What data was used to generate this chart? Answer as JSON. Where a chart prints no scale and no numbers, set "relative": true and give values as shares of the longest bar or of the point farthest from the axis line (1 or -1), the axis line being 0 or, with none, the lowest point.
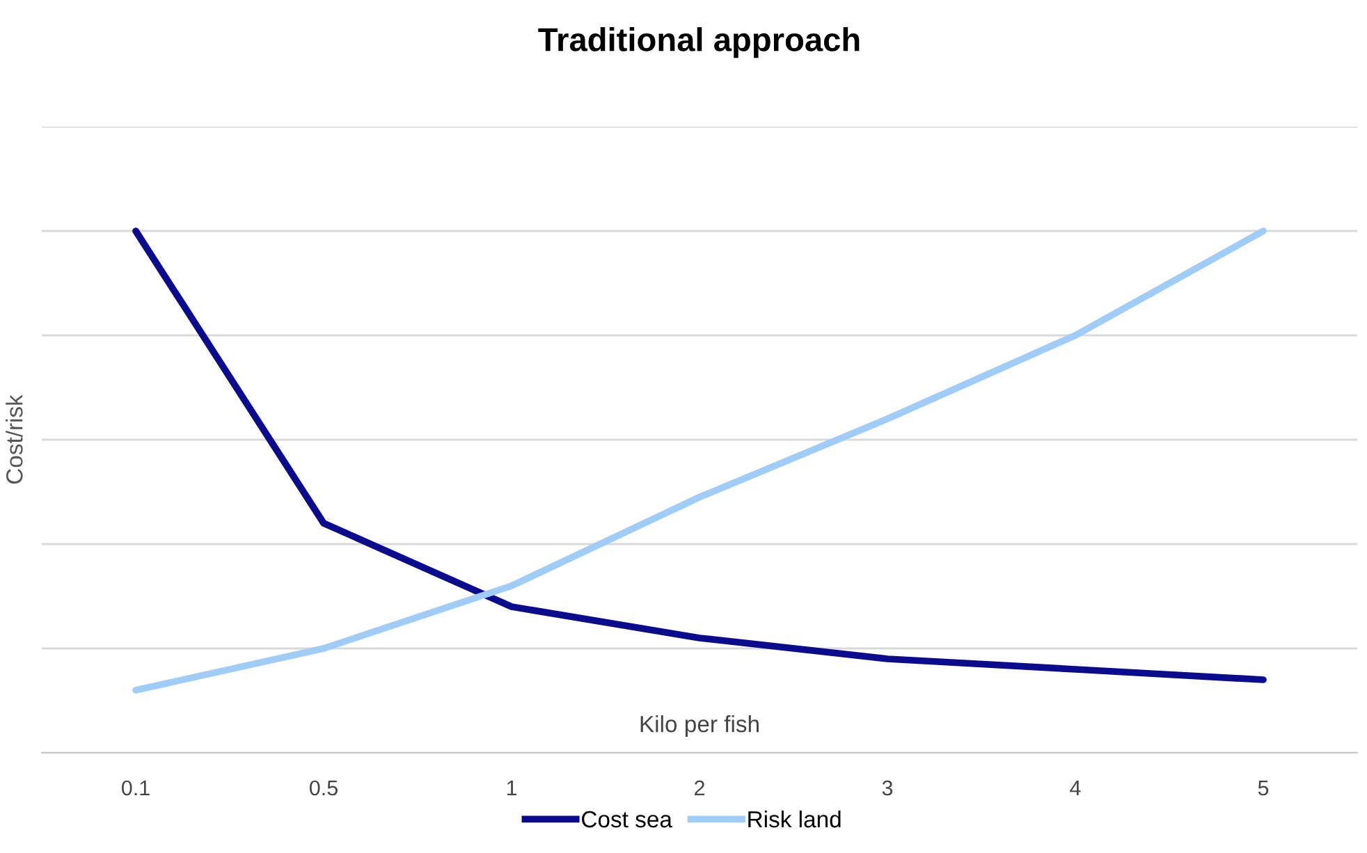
{
  "chart_data": {
    "type": "line",
    "title": "Traditional approach",
    "xlabel": "Kilo per fish",
    "ylabel": "Cost/risk",
    "relative": true,
    "grid": "y",
    "legend": "bottom",
    "marker": "none",
    "line_style": "solid",
    "categories": [
      "0.1",
      "0.5",
      "1",
      "2",
      "3",
      "4",
      "5"
    ],
    "series": [
      {
        "name": "Cost sea",
        "color": "#0b0b8e",
        "values": [
          1.0,
          0.44,
          0.28,
          0.22,
          0.18,
          0.16,
          0.14
        ]
      },
      {
        "name": "Risk land",
        "color": "#9fcdf7",
        "values": [
          0.12,
          0.2,
          0.32,
          0.49,
          0.64,
          0.8,
          1.0
        ]
      }
    ]
  }
}
